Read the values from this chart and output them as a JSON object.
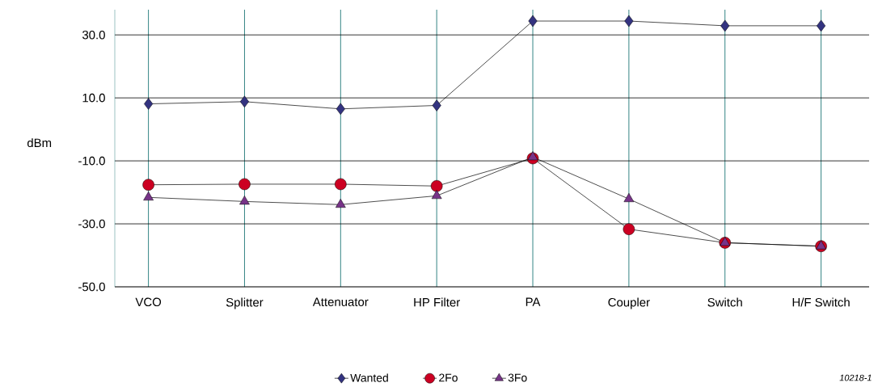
{
  "chart_data": {
    "type": "line",
    "ylabel": "dBm",
    "categories": [
      "VCO",
      "Splitter",
      "Attenuator",
      "HP Filter",
      "PA",
      "Coupler",
      "Switch",
      "H/F Switch"
    ],
    "series": [
      {
        "name": "Wanted",
        "color": "#333380",
        "marker": "diamond",
        "values": [
          8.1,
          8.8,
          6.5,
          7.6,
          34.4,
          34.4,
          32.9,
          32.9
        ]
      },
      {
        "name": "2Fo",
        "color": "#cc0022",
        "marker": "circle",
        "values": [
          -17.6,
          -17.4,
          -17.4,
          -18.0,
          -9.2,
          -31.7,
          -36.0,
          -37.1
        ]
      },
      {
        "name": "3Fo",
        "color": "#773388",
        "marker": "triangle",
        "values": [
          -21.6,
          -22.9,
          -23.9,
          -21.1,
          -8.8,
          -22.1,
          -36.0,
          -37.1
        ]
      }
    ],
    "ylim": [
      -50,
      38
    ],
    "yticks": [
      {
        "value": -50,
        "label": "-50.0"
      },
      {
        "value": -30,
        "label": "-30.0"
      },
      {
        "value": -10,
        "label": "-10.0"
      },
      {
        "value": 10,
        "label": "10.0"
      },
      {
        "value": 30,
        "label": "30.0"
      }
    ],
    "grid": true,
    "legend": "bottom",
    "line_style": "solid",
    "annotations": [
      "10218-1"
    ]
  }
}
